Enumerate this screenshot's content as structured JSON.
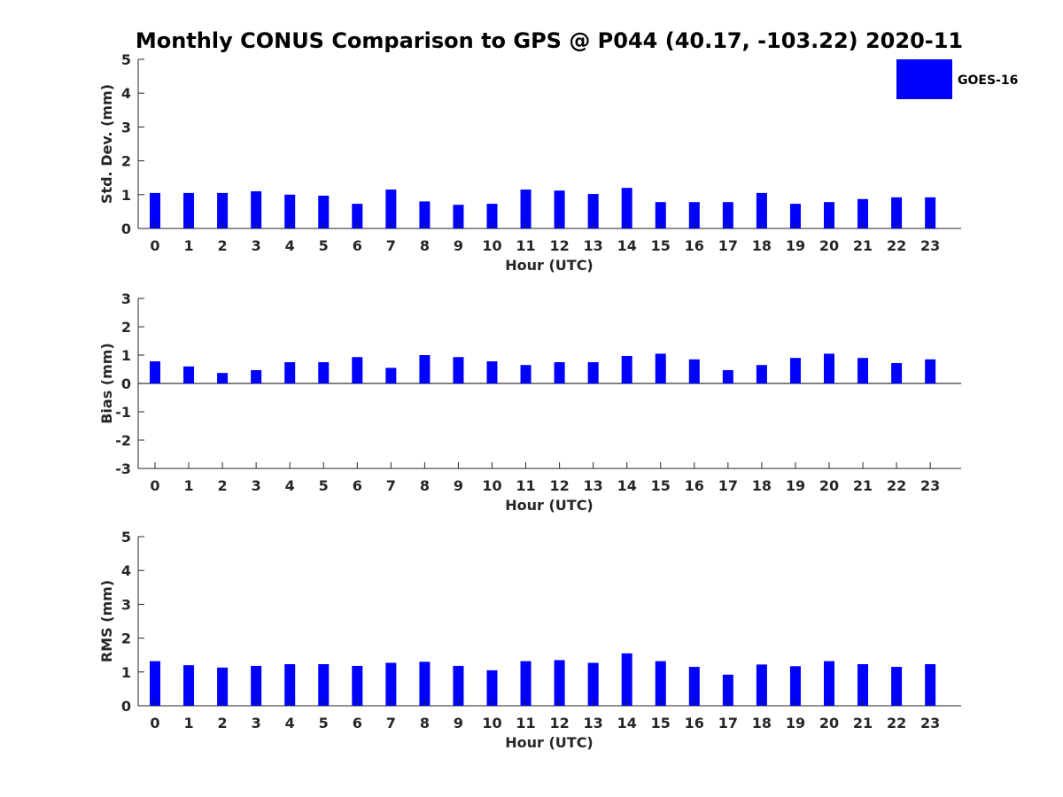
{
  "title": "Monthly CONUS Comparison to GPS @ P044 (40.17, -103.22) 2020-11",
  "legend": {
    "label": "GOES-16",
    "color": "#0000ff",
    "placement": "top-right"
  },
  "chart_data": [
    {
      "type": "bar",
      "xlabel": "Hour (UTC)",
      "ylabel": "Std. Dev. (mm)",
      "ylim": [
        0,
        5
      ],
      "yticks": [
        "0",
        "1",
        "2",
        "3",
        "4",
        "5"
      ],
      "categories": [
        "0",
        "1",
        "2",
        "3",
        "4",
        "5",
        "6",
        "7",
        "8",
        "9",
        "10",
        "11",
        "12",
        "13",
        "14",
        "15",
        "16",
        "17",
        "18",
        "19",
        "20",
        "21",
        "22",
        "23"
      ],
      "series": [
        {
          "name": "GOES-16",
          "values": [
            1.05,
            1.05,
            1.05,
            1.1,
            1.0,
            0.97,
            0.73,
            1.15,
            0.8,
            0.7,
            0.73,
            1.15,
            1.12,
            1.02,
            1.2,
            0.78,
            0.78,
            0.78,
            1.05,
            0.73,
            0.78,
            0.87,
            0.92,
            0.92
          ]
        }
      ],
      "grid": false
    },
    {
      "type": "bar",
      "xlabel": "Hour (UTC)",
      "ylabel": "Bias (mm)",
      "ylim": [
        -3,
        3
      ],
      "yticks": [
        "-3",
        "-2",
        "-1",
        "0",
        "1",
        "2",
        "3"
      ],
      "categories": [
        "0",
        "1",
        "2",
        "3",
        "4",
        "5",
        "6",
        "7",
        "8",
        "9",
        "10",
        "11",
        "12",
        "13",
        "14",
        "15",
        "16",
        "17",
        "18",
        "19",
        "20",
        "21",
        "22",
        "23"
      ],
      "series": [
        {
          "name": "GOES-16",
          "values": [
            0.78,
            0.6,
            0.37,
            0.47,
            0.75,
            0.75,
            0.93,
            0.55,
            1.0,
            0.93,
            0.78,
            0.65,
            0.75,
            0.75,
            0.97,
            1.05,
            0.85,
            0.47,
            0.65,
            0.9,
            1.05,
            0.9,
            0.72,
            0.85
          ]
        }
      ],
      "grid": false
    },
    {
      "type": "bar",
      "xlabel": "Hour (UTC)",
      "ylabel": "RMS (mm)",
      "ylim": [
        0,
        5
      ],
      "yticks": [
        "0",
        "1",
        "2",
        "3",
        "4",
        "5"
      ],
      "categories": [
        "0",
        "1",
        "2",
        "3",
        "4",
        "5",
        "6",
        "7",
        "8",
        "9",
        "10",
        "11",
        "12",
        "13",
        "14",
        "15",
        "16",
        "17",
        "18",
        "19",
        "20",
        "21",
        "22",
        "23"
      ],
      "series": [
        {
          "name": "GOES-16",
          "values": [
            1.32,
            1.2,
            1.13,
            1.18,
            1.23,
            1.23,
            1.18,
            1.27,
            1.3,
            1.18,
            1.05,
            1.32,
            1.35,
            1.27,
            1.55,
            1.32,
            1.15,
            0.92,
            1.22,
            1.17,
            1.32,
            1.23,
            1.15,
            1.23
          ]
        }
      ],
      "grid": false
    }
  ]
}
